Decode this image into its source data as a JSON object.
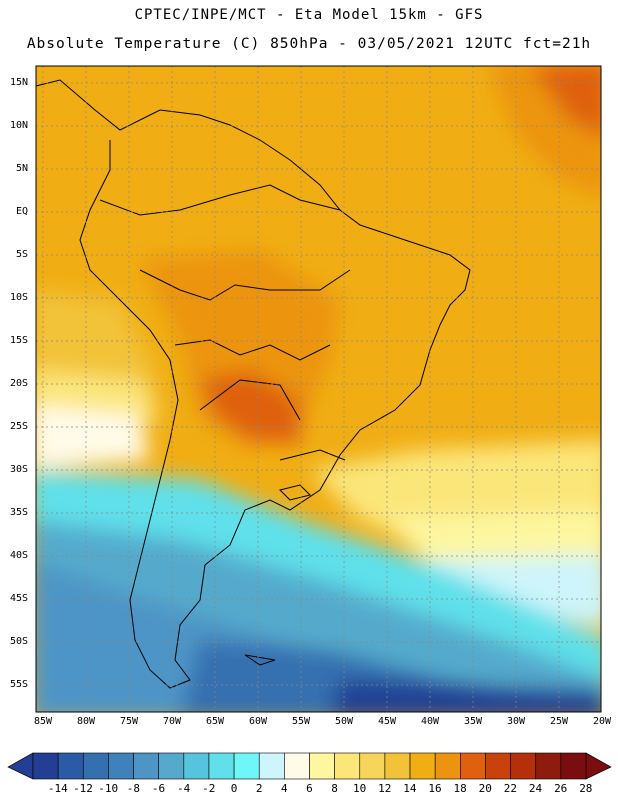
{
  "header": {
    "line1": "CPTEC/INPE/MCT -  Eta Model 15km - GFS",
    "line2": "Absolute Temperature (C) 850hPa - 03/05/2021 12UTC fct=21h"
  },
  "map": {
    "lat_labels": [
      "15N",
      "10N",
      "5N",
      "EQ",
      "5S",
      "10S",
      "15S",
      "20S",
      "25S",
      "30S",
      "35S",
      "40S",
      "45S",
      "50S",
      "55S"
    ],
    "lon_labels": [
      "85W",
      "80W",
      "75W",
      "70W",
      "65W",
      "60W",
      "55W",
      "50W",
      "45W",
      "40W",
      "35W",
      "30W",
      "25W",
      "20W"
    ]
  },
  "colorbar": {
    "labels": [
      "-14",
      "-12",
      "-10",
      "-8",
      "-6",
      "-4",
      "-2",
      "0",
      "2",
      "4",
      "6",
      "8",
      "10",
      "12",
      "14",
      "16",
      "18",
      "20",
      "22",
      "24",
      "26",
      "28"
    ],
    "colors": [
      "#233f93",
      "#2b5aa6",
      "#3470b0",
      "#3f82bb",
      "#4e95c6",
      "#55aacc",
      "#57c4dd",
      "#5fe0ea",
      "#6ff7f7",
      "#cdf5fb",
      "#fffbe8",
      "#fdf7a0",
      "#fbe67a",
      "#f6d55a",
      "#f2c238",
      "#f0ae14",
      "#ec9410",
      "#df600e",
      "#c8420c",
      "#b3300a",
      "#8d1c0c",
      "#7a0d0f"
    ]
  }
}
